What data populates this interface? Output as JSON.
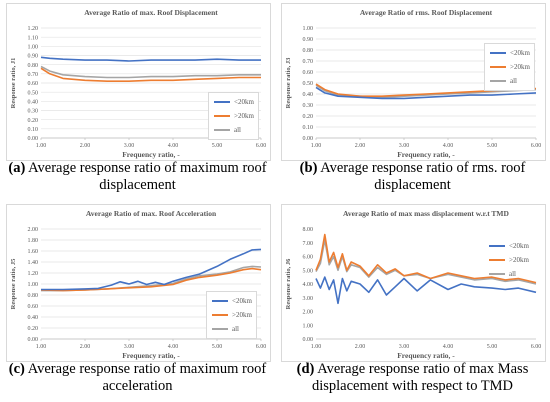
{
  "figures": [
    {
      "caption_letter": "(a)",
      "caption_text": " Average response ratio of maximum roof displacement",
      "legend_style": "boxed"
    },
    {
      "caption_letter": "(b)",
      "caption_text": " Average response ratio of rms. roof displacement",
      "legend_style": "boxed"
    },
    {
      "caption_letter": "(c)",
      "caption_text": " Average response ratio of maximum roof acceleration",
      "legend_style": "boxed"
    },
    {
      "caption_letter": "(d)",
      "caption_text": " Average response ratio of max Mass displacement with respect to TMD",
      "legend_style": "plain"
    }
  ],
  "chart_data": [
    {
      "type": "line",
      "title": "Average Ratio of max. Roof Displacement",
      "xlabel": "Frequency ratio, -",
      "ylabel": "Response ratio, J1",
      "xlim": [
        1.0,
        6.0
      ],
      "ylim": [
        0.0,
        1.2
      ],
      "xticks": [
        "1.00",
        "2.00",
        "3.00",
        "4.00",
        "5.00",
        "6.00"
      ],
      "yticks": [
        "0.00",
        "0.10",
        "0.20",
        "0.30",
        "0.40",
        "0.50",
        "0.60",
        "0.70",
        "0.80",
        "0.90",
        "1.00",
        "1.10",
        "1.20"
      ],
      "grid": true,
      "legend_position": "right",
      "series": [
        {
          "name": "<20km",
          "color": "#4472c4",
          "x": [
            1.0,
            1.2,
            1.5,
            2.0,
            2.5,
            3.0,
            3.5,
            4.0,
            4.5,
            5.0,
            5.5,
            6.0
          ],
          "y": [
            0.88,
            0.87,
            0.86,
            0.85,
            0.85,
            0.84,
            0.85,
            0.85,
            0.85,
            0.86,
            0.85,
            0.85
          ]
        },
        {
          "name": ">20km",
          "color": "#ed7d31",
          "x": [
            1.0,
            1.2,
            1.5,
            2.0,
            2.5,
            3.0,
            3.5,
            4.0,
            4.5,
            5.0,
            5.5,
            6.0
          ],
          "y": [
            0.76,
            0.7,
            0.65,
            0.63,
            0.62,
            0.62,
            0.63,
            0.63,
            0.64,
            0.65,
            0.66,
            0.66
          ]
        },
        {
          "name": "all",
          "color": "#a5a5a5",
          "x": [
            1.0,
            1.2,
            1.5,
            2.0,
            2.5,
            3.0,
            3.5,
            4.0,
            4.5,
            5.0,
            5.5,
            6.0
          ],
          "y": [
            0.78,
            0.73,
            0.69,
            0.67,
            0.66,
            0.66,
            0.67,
            0.67,
            0.68,
            0.68,
            0.69,
            0.69
          ]
        }
      ]
    },
    {
      "type": "line",
      "title": "Average Ratio of rms. Roof Displacement",
      "xlabel": "Frequency ratio, -",
      "ylabel": "Response ratio, J3",
      "xlim": [
        1.0,
        6.0
      ],
      "ylim": [
        0.0,
        1.0
      ],
      "xticks": [
        "1.00",
        "2.00",
        "3.00",
        "4.00",
        "5.00",
        "6.00"
      ],
      "yticks": [
        "0.00",
        "0.10",
        "0.20",
        "0.30",
        "0.40",
        "0.50",
        "0.60",
        "0.70",
        "0.80",
        "0.90",
        "1.00"
      ],
      "grid": true,
      "legend_position": "right",
      "series": [
        {
          "name": "<20km",
          "color": "#4472c4",
          "x": [
            1.0,
            1.2,
            1.5,
            2.0,
            2.5,
            3.0,
            3.5,
            4.0,
            4.5,
            5.0,
            5.5,
            6.0
          ],
          "y": [
            0.46,
            0.41,
            0.38,
            0.37,
            0.36,
            0.36,
            0.37,
            0.38,
            0.39,
            0.39,
            0.4,
            0.41
          ]
        },
        {
          "name": ">20km",
          "color": "#ed7d31",
          "x": [
            1.0,
            1.2,
            1.5,
            2.0,
            2.5,
            3.0,
            3.5,
            4.0,
            4.5,
            5.0,
            5.5,
            6.0
          ],
          "y": [
            0.49,
            0.44,
            0.4,
            0.38,
            0.38,
            0.39,
            0.4,
            0.41,
            0.42,
            0.43,
            0.44,
            0.45
          ]
        },
        {
          "name": "all",
          "color": "#a5a5a5",
          "x": [
            1.0,
            1.2,
            1.5,
            2.0,
            2.5,
            3.0,
            3.5,
            4.0,
            4.5,
            5.0,
            5.5,
            6.0
          ],
          "y": [
            0.48,
            0.43,
            0.39,
            0.38,
            0.37,
            0.38,
            0.39,
            0.4,
            0.41,
            0.42,
            0.43,
            0.44
          ]
        }
      ]
    },
    {
      "type": "line",
      "title": "Average Ratio of max. Roof Acceleration",
      "xlabel": "Frequency ratio, -",
      "ylabel": "Response ratio, J5",
      "xlim": [
        1.0,
        6.0
      ],
      "ylim": [
        0.0,
        2.0
      ],
      "xticks": [
        "1.00",
        "2.00",
        "3.00",
        "4.00",
        "5.00",
        "6.00"
      ],
      "yticks": [
        "0.00",
        "0.20",
        "0.40",
        "0.60",
        "0.80",
        "1.00",
        "1.20",
        "1.40",
        "1.60",
        "1.80",
        "2.00"
      ],
      "grid": true,
      "legend_position": "right",
      "series": [
        {
          "name": "<20km",
          "color": "#4472c4",
          "x": [
            1.0,
            1.5,
            2.0,
            2.3,
            2.6,
            2.8,
            3.0,
            3.2,
            3.4,
            3.6,
            3.8,
            4.0,
            4.3,
            4.6,
            5.0,
            5.3,
            5.6,
            5.8,
            6.0
          ],
          "y": [
            0.9,
            0.9,
            0.91,
            0.92,
            0.98,
            1.04,
            1.0,
            1.05,
            0.99,
            1.03,
            0.99,
            1.05,
            1.12,
            1.18,
            1.32,
            1.45,
            1.55,
            1.62,
            1.63
          ]
        },
        {
          "name": ">20km",
          "color": "#ed7d31",
          "x": [
            1.0,
            1.5,
            2.0,
            2.5,
            3.0,
            3.5,
            4.0,
            4.3,
            4.6,
            5.0,
            5.3,
            5.6,
            5.8,
            6.0
          ],
          "y": [
            0.89,
            0.88,
            0.89,
            0.91,
            0.93,
            0.95,
            0.99,
            1.07,
            1.12,
            1.16,
            1.2,
            1.26,
            1.28,
            1.26
          ]
        },
        {
          "name": "all",
          "color": "#a5a5a5",
          "x": [
            1.0,
            1.5,
            2.0,
            2.5,
            3.0,
            3.5,
            4.0,
            4.3,
            4.6,
            5.0,
            5.3,
            5.6,
            5.8,
            6.0
          ],
          "y": [
            0.88,
            0.88,
            0.89,
            0.91,
            0.94,
            0.97,
            1.01,
            1.09,
            1.15,
            1.18,
            1.22,
            1.3,
            1.32,
            1.31
          ]
        }
      ]
    },
    {
      "type": "line",
      "title": "Average Ratio of max mass displacement w.r.t TMD",
      "xlabel": "Frequency ratio, -",
      "ylabel": "Response ratio, J6",
      "xlim": [
        1.0,
        6.0
      ],
      "ylim": [
        0.0,
        8.0
      ],
      "xticks": [
        "1.00",
        "2.00",
        "3.00",
        "4.00",
        "5.00",
        "6.00"
      ],
      "yticks": [
        "0.00",
        "1.00",
        "2.00",
        "3.00",
        "4.00",
        "5.00",
        "6.00",
        "7.00",
        "8.00"
      ],
      "grid": false,
      "legend_position": "right",
      "series": [
        {
          "name": "<20km",
          "color": "#4472c4",
          "x": [
            1.0,
            1.1,
            1.2,
            1.3,
            1.4,
            1.5,
            1.6,
            1.7,
            1.8,
            2.0,
            2.2,
            2.4,
            2.6,
            2.8,
            3.0,
            3.3,
            3.6,
            4.0,
            4.3,
            4.6,
            5.0,
            5.3,
            5.6,
            6.0
          ],
          "y": [
            4.4,
            3.7,
            4.5,
            3.6,
            4.3,
            2.6,
            4.4,
            3.5,
            4.2,
            4.0,
            3.4,
            4.3,
            3.2,
            3.8,
            4.4,
            3.5,
            4.3,
            3.6,
            4.0,
            3.8,
            3.7,
            3.6,
            3.7,
            3.4
          ]
        },
        {
          "name": ">20km",
          "color": "#ed7d31",
          "x": [
            1.0,
            1.1,
            1.2,
            1.3,
            1.4,
            1.5,
            1.6,
            1.7,
            1.8,
            2.0,
            2.2,
            2.4,
            2.6,
            2.8,
            3.0,
            3.3,
            3.6,
            4.0,
            4.3,
            4.6,
            5.0,
            5.3,
            5.6,
            6.0
          ],
          "y": [
            5.0,
            5.8,
            7.6,
            5.6,
            6.3,
            5.2,
            6.2,
            5.0,
            5.6,
            5.3,
            4.6,
            5.4,
            4.8,
            5.1,
            4.6,
            4.8,
            4.4,
            4.8,
            4.6,
            4.4,
            4.5,
            4.3,
            4.4,
            4.1
          ]
        },
        {
          "name": "all",
          "color": "#a5a5a5",
          "x": [
            1.0,
            1.1,
            1.2,
            1.3,
            1.4,
            1.5,
            1.6,
            1.7,
            1.8,
            2.0,
            2.2,
            2.4,
            2.6,
            2.8,
            3.0,
            3.3,
            3.6,
            4.0,
            4.3,
            4.6,
            5.0,
            5.3,
            5.6,
            6.0
          ],
          "y": [
            4.9,
            5.5,
            7.2,
            5.4,
            6.0,
            5.0,
            6.0,
            4.9,
            5.4,
            5.2,
            4.5,
            5.2,
            4.7,
            5.0,
            4.6,
            4.7,
            4.4,
            4.7,
            4.5,
            4.3,
            4.4,
            4.2,
            4.3,
            4.0
          ]
        }
      ]
    }
  ]
}
